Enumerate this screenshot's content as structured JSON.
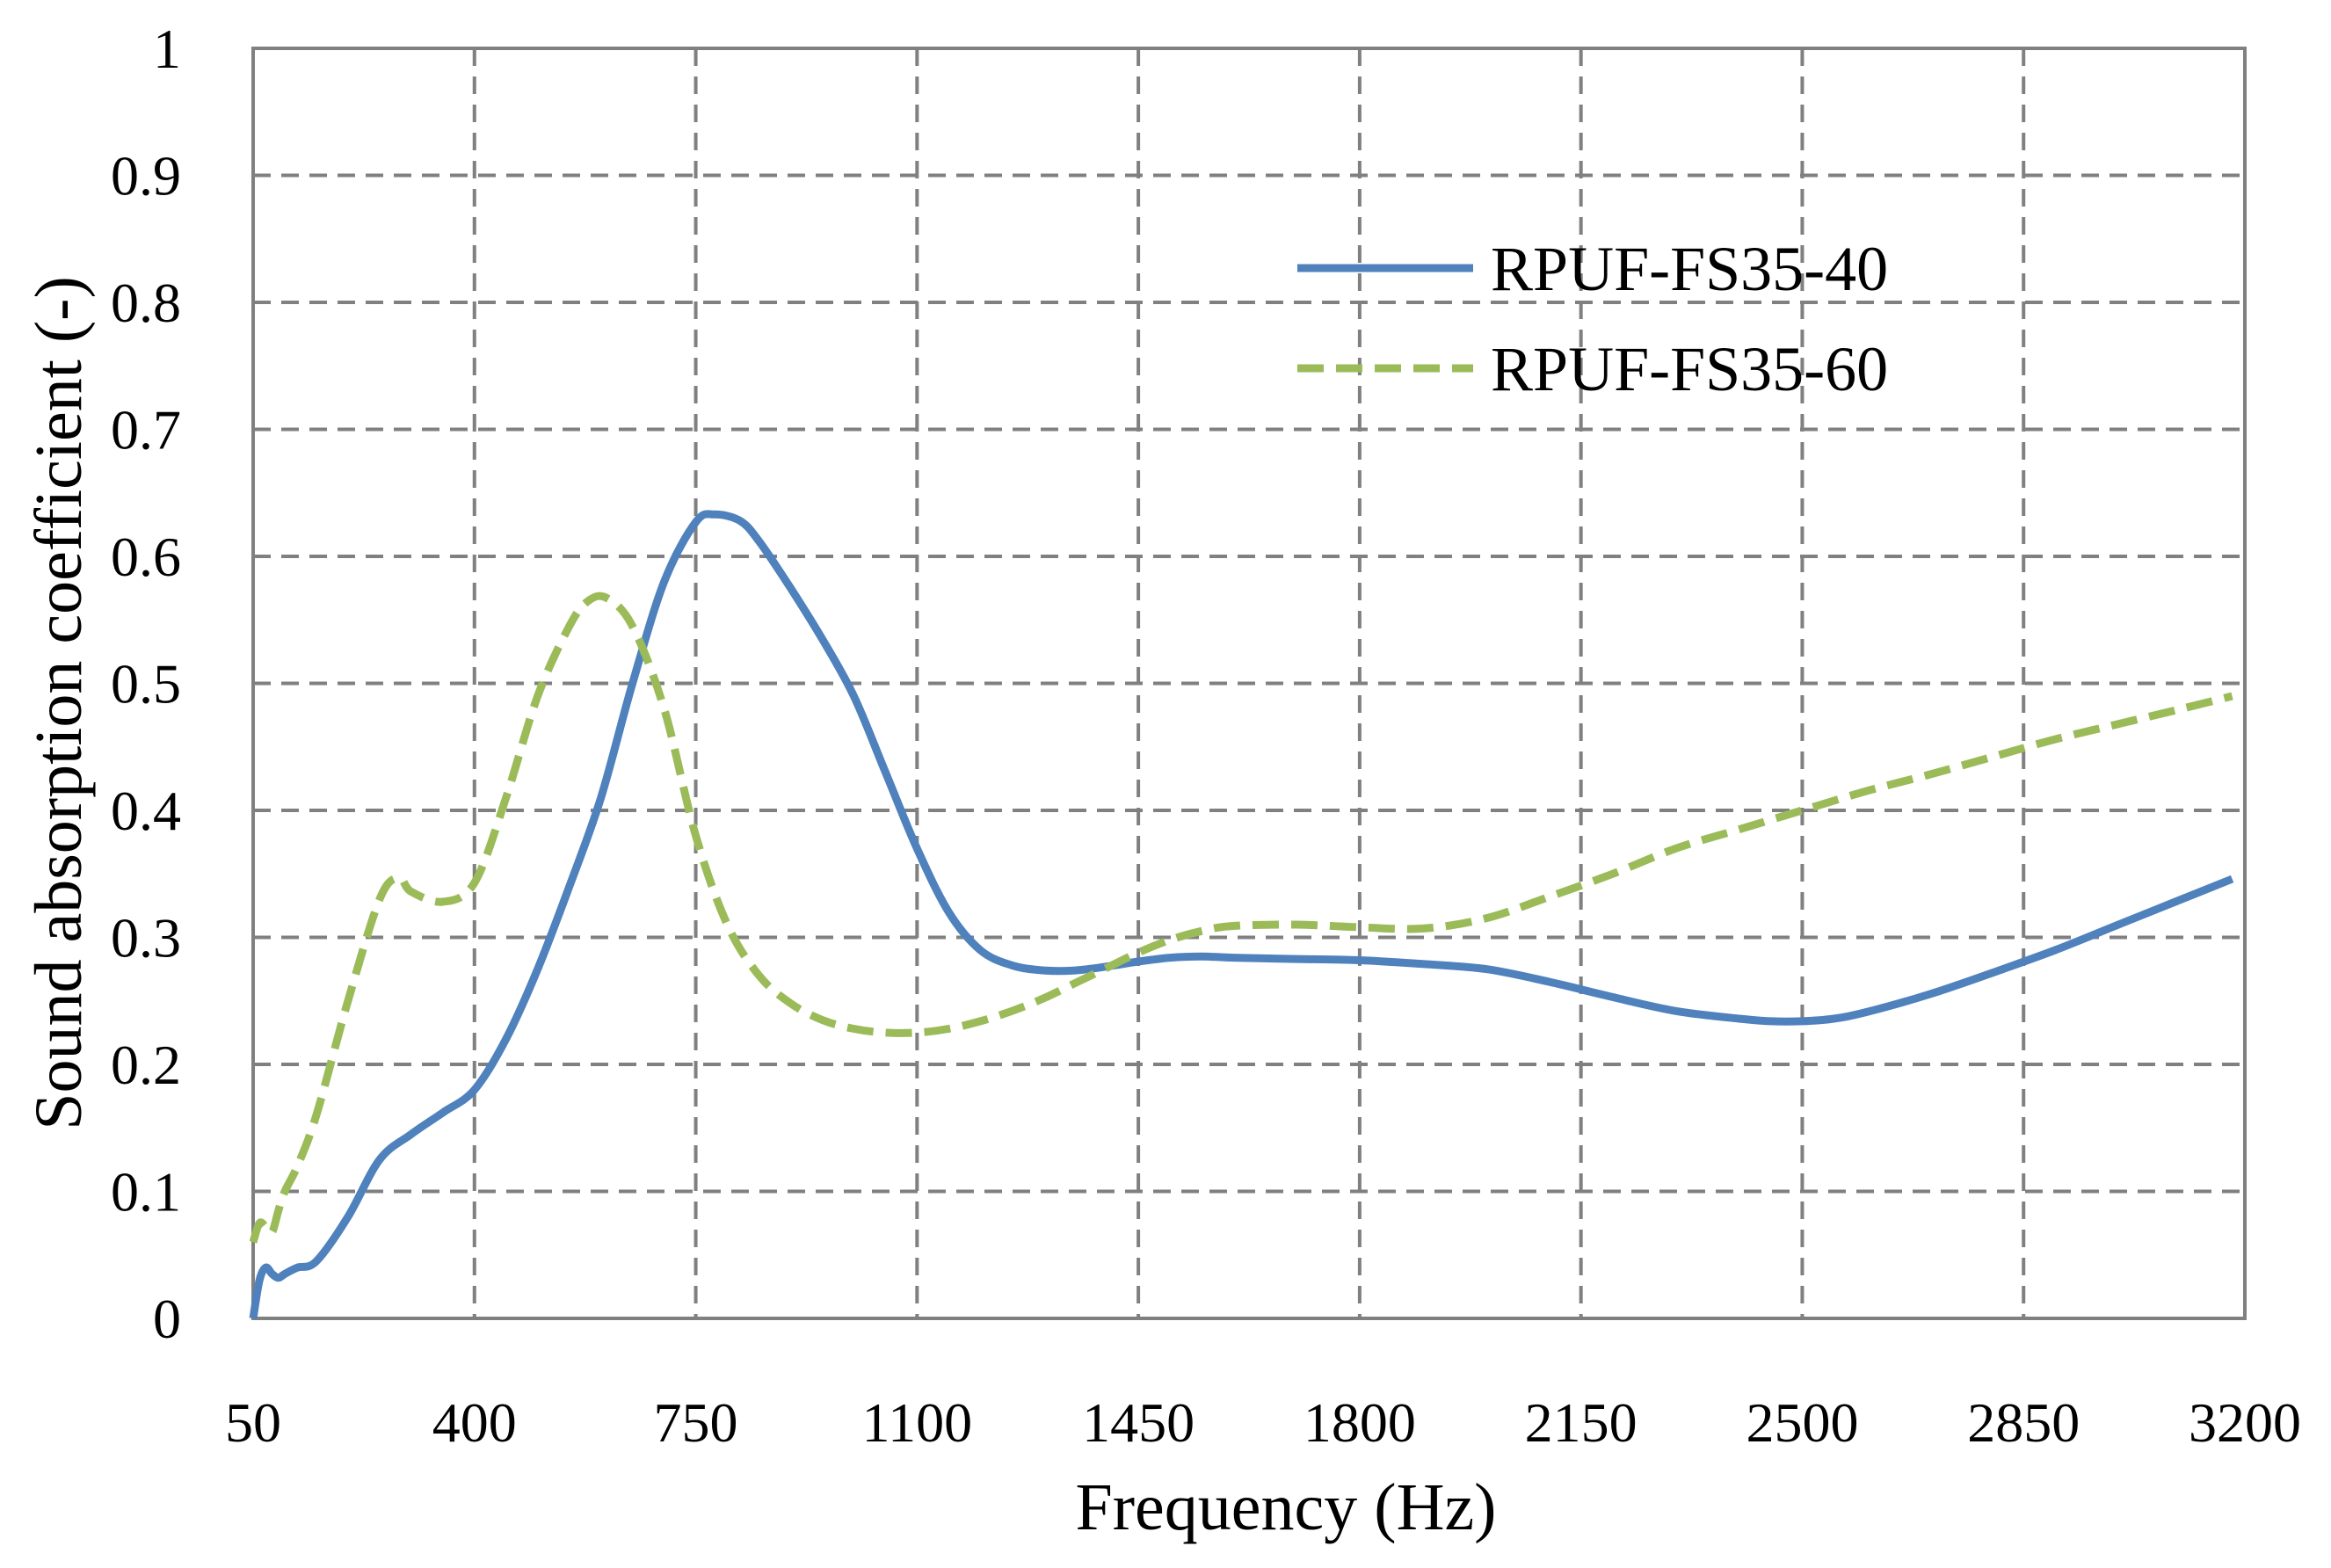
{
  "chart_data": {
    "type": "line",
    "title": "",
    "xlabel": "Frequency (Hz)",
    "ylabel": "Sound absorption coefficient (-)",
    "xlim": [
      50,
      3200
    ],
    "ylim": [
      0,
      1
    ],
    "xticks": [
      50,
      400,
      750,
      1100,
      1450,
      1800,
      2150,
      2500,
      2850,
      3200
    ],
    "yticks": [
      0,
      0.1,
      0.2,
      0.3,
      0.4,
      0.5,
      0.6,
      0.7,
      0.8,
      0.9,
      1
    ],
    "ytick_labels": [
      "0",
      "0.1",
      "0.2",
      "0.3",
      "0.4",
      "0.5",
      "0.6",
      "0.7",
      "0.8",
      "0.9",
      "1"
    ],
    "grid": true,
    "legend_position": "top-right",
    "series": [
      {
        "name": "RPUF-FS35-40",
        "color": "#4f81bd",
        "dash": "solid",
        "x": [
          50,
          60,
          70,
          80,
          90,
          100,
          120,
          150,
          200,
          250,
          300,
          350,
          400,
          450,
          500,
          550,
          600,
          650,
          700,
          750,
          780,
          820,
          850,
          900,
          950,
          1000,
          1050,
          1100,
          1150,
          1200,
          1250,
          1300,
          1350,
          1400,
          1450,
          1500,
          1550,
          1600,
          1700,
          1800,
          1900,
          2000,
          2100,
          2200,
          2300,
          2400,
          2450,
          2500,
          2550,
          2600,
          2700,
          2800,
          2900,
          3000,
          3100,
          3180
        ],
        "y": [
          0.0,
          0.03,
          0.04,
          0.035,
          0.032,
          0.035,
          0.04,
          0.045,
          0.08,
          0.125,
          0.145,
          0.162,
          0.18,
          0.22,
          0.275,
          0.34,
          0.41,
          0.5,
          0.58,
          0.627,
          0.633,
          0.628,
          0.612,
          0.575,
          0.535,
          0.49,
          0.43,
          0.37,
          0.32,
          0.29,
          0.278,
          0.274,
          0.274,
          0.277,
          0.281,
          0.284,
          0.285,
          0.284,
          0.283,
          0.282,
          0.279,
          0.275,
          0.265,
          0.253,
          0.242,
          0.236,
          0.234,
          0.234,
          0.236,
          0.241,
          0.255,
          0.272,
          0.29,
          0.31,
          0.33,
          0.346
        ]
      },
      {
        "name": "RPUF-FS35-60",
        "color": "#9bbb59",
        "dash": "dashed",
        "x": [
          50,
          60,
          70,
          80,
          90,
          100,
          120,
          150,
          200,
          250,
          280,
          300,
          350,
          400,
          450,
          500,
          550,
          580,
          610,
          650,
          700,
          750,
          800,
          850,
          900,
          950,
          1000,
          1050,
          1100,
          1150,
          1200,
          1250,
          1300,
          1350,
          1400,
          1450,
          1500,
          1550,
          1600,
          1700,
          1800,
          1900,
          2000,
          2100,
          2200,
          2300,
          2400,
          2500,
          2600,
          2700,
          2800,
          2900,
          3000,
          3100,
          3180
        ],
        "y": [
          0.06,
          0.075,
          0.072,
          0.068,
          0.085,
          0.1,
          0.12,
          0.16,
          0.25,
          0.33,
          0.347,
          0.336,
          0.328,
          0.343,
          0.41,
          0.49,
          0.545,
          0.565,
          0.567,
          0.545,
          0.48,
          0.38,
          0.31,
          0.27,
          0.248,
          0.235,
          0.228,
          0.225,
          0.225,
          0.228,
          0.234,
          0.242,
          0.252,
          0.264,
          0.276,
          0.288,
          0.298,
          0.305,
          0.309,
          0.31,
          0.308,
          0.307,
          0.315,
          0.332,
          0.35,
          0.37,
          0.385,
          0.4,
          0.415,
          0.428,
          0.442,
          0.456,
          0.468,
          0.48,
          0.49
        ]
      }
    ]
  }
}
